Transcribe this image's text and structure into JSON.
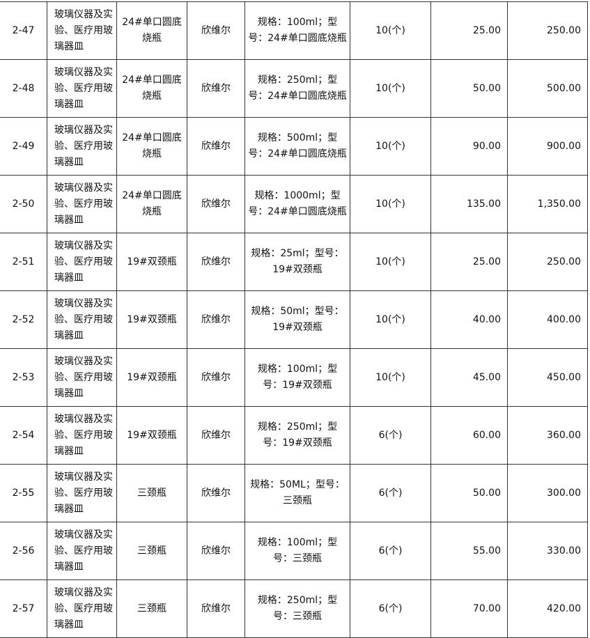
{
  "rows": [
    {
      "no": "2-47",
      "category": "玻璃仪器及实验、医疗用玻璃器皿",
      "name": "24#单口圆底烧瓶",
      "brand": "欣维尔",
      "spec": "规格：100ml；型号：24#单口圆底烧瓶",
      "qty": "10(个)",
      "price": "25.00",
      "total": "250.00"
    },
    {
      "no": "2-48",
      "category": "玻璃仪器及实验、医疗用玻璃器皿",
      "name": "24#单口圆底烧瓶",
      "brand": "欣维尔",
      "spec": "规格：250ml；型号：24#单口圆底烧瓶",
      "qty": "10(个)",
      "price": "50.00",
      "total": "500.00"
    },
    {
      "no": "2-49",
      "category": "玻璃仪器及实验、医疗用玻璃器皿",
      "name": "24#单口圆底烧瓶",
      "brand": "欣维尔",
      "spec": "规格：500ml；型号：24#单口圆底烧瓶",
      "qty": "10(个)",
      "price": "90.00",
      "total": "900.00"
    },
    {
      "no": "2-50",
      "category": "玻璃仪器及实验、医疗用玻璃器皿",
      "name": "24#单口圆底烧瓶",
      "brand": "欣维尔",
      "spec": "规格：1000ml；型号：24#单口圆底烧瓶",
      "qty": "10(个)",
      "price": "135.00",
      "total": "1,350.00"
    },
    {
      "no": "2-51",
      "category": "玻璃仪器及实验、医疗用玻璃器皿",
      "name": "19#双颈瓶",
      "brand": "欣维尔",
      "spec": "规格：25ml；型号：19#双颈瓶",
      "qty": "10(个)",
      "price": "25.00",
      "total": "250.00"
    },
    {
      "no": "2-52",
      "category": "玻璃仪器及实验、医疗用玻璃器皿",
      "name": "19#双颈瓶",
      "brand": "欣维尔",
      "spec": "规格：50ml；型号：19#双颈瓶",
      "qty": "10(个)",
      "price": "40.00",
      "total": "400.00"
    },
    {
      "no": "2-53",
      "category": "玻璃仪器及实验、医疗用玻璃器皿",
      "name": "19#双颈瓶",
      "brand": "欣维尔",
      "spec": "规格：100ml；型号：19#双颈瓶",
      "qty": "10(个)",
      "price": "45.00",
      "total": "450.00"
    },
    {
      "no": "2-54",
      "category": "玻璃仪器及实验、医疗用玻璃器皿",
      "name": "19#双颈瓶",
      "brand": "欣维尔",
      "spec": "规格：250ml；型号：19#双颈瓶",
      "qty": "6(个)",
      "price": "60.00",
      "total": "360.00"
    },
    {
      "no": "2-55",
      "category": "玻璃仪器及实验、医疗用玻璃器皿",
      "name": "三颈瓶",
      "brand": "欣维尔",
      "spec": "规格：50ML；型号：三颈瓶",
      "qty": "6(个)",
      "price": "50.00",
      "total": "300.00"
    },
    {
      "no": "2-56",
      "category": "玻璃仪器及实验、医疗用玻璃器皿",
      "name": "三颈瓶",
      "brand": "欣维尔",
      "spec": "规格：100ml；型号：三颈瓶",
      "qty": "6(个)",
      "price": "55.00",
      "total": "330.00"
    },
    {
      "no": "2-57",
      "category": "玻璃仪器及实验、医疗用玻璃器皿",
      "name": "三颈瓶",
      "brand": "欣维尔",
      "spec": "规格：250ml；型号：三颈瓶",
      "qty": "6(个)",
      "price": "70.00",
      "total": "420.00"
    }
  ]
}
